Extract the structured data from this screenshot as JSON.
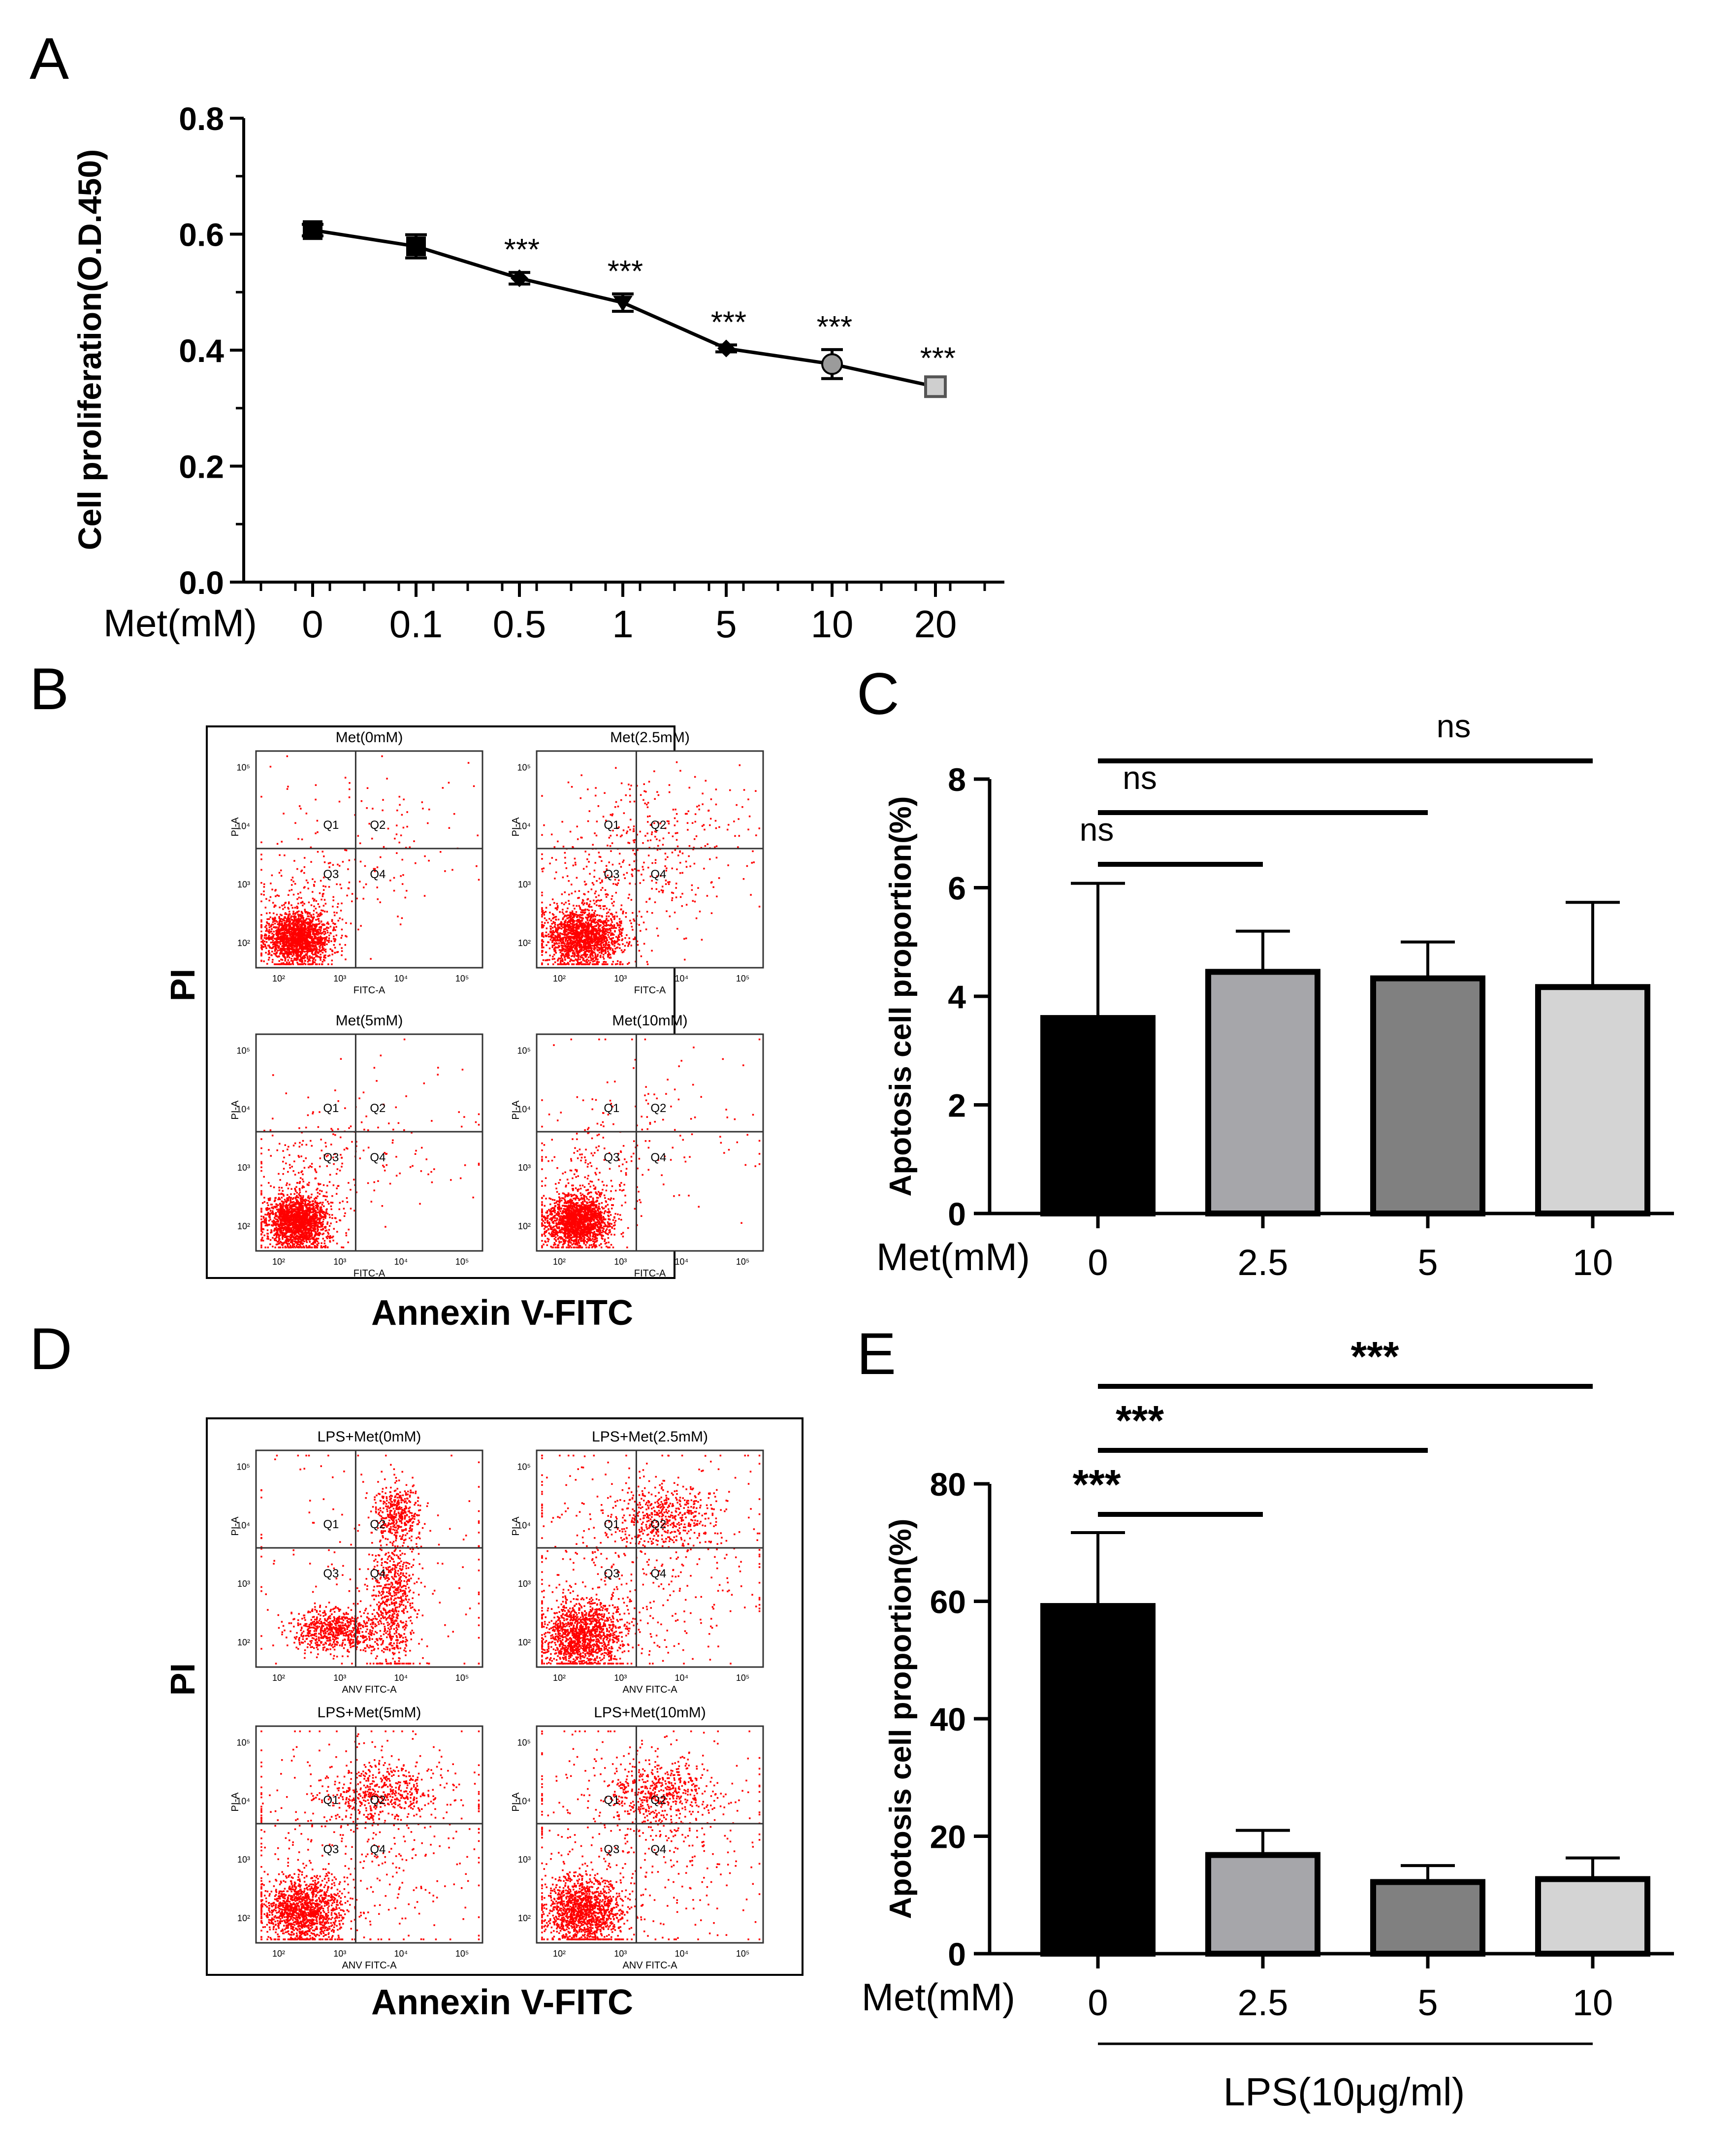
{
  "panels": {
    "a": {
      "letter": "A"
    },
    "b": {
      "letter": "B",
      "y_label": "PI",
      "x_label": "Annexin V-FITC"
    },
    "c": {
      "letter": "C"
    },
    "d": {
      "letter": "D",
      "y_label": "PI",
      "x_label": "Annexin V-FITC"
    },
    "e": {
      "letter": "E"
    }
  },
  "colors": {
    "scatter": "#ff0000",
    "axis": "#000000",
    "gridline": "#333333"
  },
  "chart_data": [
    {
      "id": "A",
      "type": "line",
      "ylabel": "Cell proliferation(O.D.450)",
      "xlabel_prefix": "Met(mM)",
      "categories": [
        "0",
        "0.1",
        "0.5",
        "1",
        "5",
        "10",
        "20"
      ],
      "values": [
        0.607,
        0.579,
        0.524,
        0.482,
        0.403,
        0.376,
        0.337
      ],
      "errors": [
        0.01,
        0.02,
        0.01,
        0.015,
        0.006,
        0.025,
        0.01
      ],
      "markers": [
        "square",
        "square",
        "diamond",
        "triangle-down",
        "diamond",
        "circle",
        "square-open"
      ],
      "significance": [
        "",
        "",
        "***",
        "***",
        "***",
        "***",
        "***"
      ],
      "ylim": [
        0,
        0.8
      ],
      "yticks": [
        "0.0",
        "0.2",
        "0.4",
        "0.6",
        "0.8"
      ]
    },
    {
      "id": "C",
      "type": "bar",
      "ylabel": "Apotosis cell proportion(%)",
      "xlabel_prefix": "Met(mM)",
      "categories": [
        "0",
        "2.5",
        "5",
        "10"
      ],
      "values": [
        3.6,
        4.45,
        4.33,
        4.17
      ],
      "errors": [
        2.48,
        0.75,
        0.67,
        1.56
      ],
      "bar_colors": [
        "#000000",
        "#a6a6aa",
        "#808080",
        "#d4d4d4"
      ],
      "ylim": [
        0,
        8
      ],
      "yticks": [
        "0",
        "2",
        "4",
        "6",
        "8"
      ],
      "comparisons": [
        {
          "from": 0,
          "to": 1,
          "label": "ns"
        },
        {
          "from": 0,
          "to": 2,
          "label": "ns"
        },
        {
          "from": 0,
          "to": 3,
          "label": "ns"
        }
      ]
    },
    {
      "id": "E",
      "type": "bar",
      "ylabel": "Apotosis cell proportion(%)",
      "xlabel_prefix": "Met(mM)",
      "categories": [
        "0",
        "2.5",
        "5",
        "10"
      ],
      "values": [
        59.2,
        16.8,
        12.2,
        12.7
      ],
      "errors": [
        12.5,
        4.2,
        2.8,
        3.6
      ],
      "bar_colors": [
        "#000000",
        "#a6a6aa",
        "#808080",
        "#d4d4d4"
      ],
      "ylim": [
        0,
        80
      ],
      "yticks": [
        "0",
        "20",
        "40",
        "60",
        "80"
      ],
      "comparisons": [
        {
          "from": 0,
          "to": 1,
          "label": "***"
        },
        {
          "from": 0,
          "to": 2,
          "label": "***"
        },
        {
          "from": 0,
          "to": 3,
          "label": "***"
        }
      ],
      "group_label": "LPS(10μg/ml)"
    },
    {
      "id": "B",
      "type": "scatter",
      "description": "flow cytometry",
      "x_axis": "FITC-A",
      "y_axis": "PI-A",
      "quadrants": [
        "Q1",
        "Q2",
        "Q3",
        "Q4"
      ],
      "tick_labels_x": [
        "10²",
        "10³",
        "10⁴",
        "10⁵"
      ],
      "tick_labels_y": [
        "10²",
        "10³",
        "10⁴",
        "10⁵"
      ],
      "plots": [
        {
          "title": "Met(0mM)",
          "profile": "low"
        },
        {
          "title": "Met(2.5mM)",
          "profile": "low-mid"
        },
        {
          "title": "Met(5mM)",
          "profile": "low"
        },
        {
          "title": "Met(10mM)",
          "profile": "low"
        }
      ]
    },
    {
      "id": "D",
      "type": "scatter",
      "description": "flow cytometry",
      "x_axis": "ANV FITC-A",
      "y_axis": "PI-A",
      "quadrants": [
        "Q1",
        "Q2",
        "Q3",
        "Q4"
      ],
      "tick_labels_x": [
        "10²",
        "10³",
        "10⁴",
        "10⁵"
      ],
      "tick_labels_y": [
        "10²",
        "10³",
        "10⁴",
        "10⁵"
      ],
      "plots": [
        {
          "title": "LPS+Met(0mM)",
          "profile": "high"
        },
        {
          "title": "LPS+Met(2.5mM)",
          "profile": "mid"
        },
        {
          "title": "LPS+Met(5mM)",
          "profile": "mid"
        },
        {
          "title": "LPS+Met(10mM)",
          "profile": "mid"
        }
      ]
    }
  ]
}
